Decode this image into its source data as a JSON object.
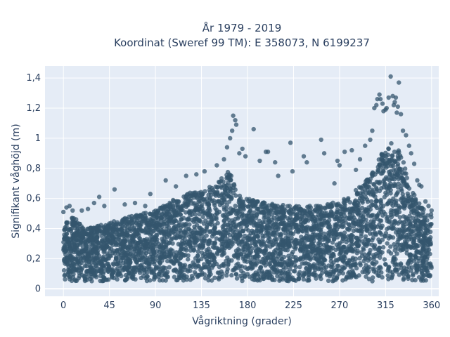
{
  "chart_data": {
    "type": "scatter",
    "title_line1": "År 1979 - 2019",
    "title_line2": "Koordinat (Sweref 99 TM): E 358073, N 6199237",
    "xlabel": "Vågriktning (grader)",
    "ylabel": "Signifikant våghöjd (m)",
    "xlim": [
      -18,
      367
    ],
    "ylim": [
      -0.05,
      1.48
    ],
    "grid": true,
    "x_ticks": [
      {
        "value": 0,
        "label": "0"
      },
      {
        "value": 45,
        "label": "45"
      },
      {
        "value": 90,
        "label": "90"
      },
      {
        "value": 135,
        "label": "135"
      },
      {
        "value": 180,
        "label": "180"
      },
      {
        "value": 225,
        "label": "225"
      },
      {
        "value": 270,
        "label": "270"
      },
      {
        "value": 315,
        "label": "315"
      },
      {
        "value": 360,
        "label": "360"
      }
    ],
    "y_ticks": [
      {
        "value": 0,
        "label": "0"
      },
      {
        "value": 0.2,
        "label": "0,2"
      },
      {
        "value": 0.4,
        "label": "0,4"
      },
      {
        "value": 0.6,
        "label": "0,6"
      },
      {
        "value": 0.8,
        "label": "0,8"
      },
      {
        "value": 1.0,
        "label": "1"
      },
      {
        "value": 1.2,
        "label": "1,2"
      },
      {
        "value": 1.4,
        "label": "1,4"
      }
    ],
    "series": [
      {
        "marker_color": "#34566d",
        "dense_envelope": {
          "x": [
            0,
            10,
            20,
            30,
            45,
            60,
            75,
            90,
            100,
            110,
            120,
            135,
            145,
            150,
            155,
            160,
            165,
            170,
            175,
            180,
            190,
            200,
            210,
            225,
            240,
            255,
            270,
            280,
            290,
            300,
            305,
            310,
            315,
            320,
            325,
            330,
            335,
            340,
            345,
            350,
            355,
            360
          ],
          "y_low": [
            0.05,
            0.05,
            0.05,
            0.05,
            0.05,
            0.05,
            0.05,
            0.05,
            0.05,
            0.05,
            0.05,
            0.05,
            0.05,
            0.05,
            0.05,
            0.05,
            0.05,
            0.05,
            0.05,
            0.05,
            0.05,
            0.05,
            0.05,
            0.05,
            0.05,
            0.05,
            0.05,
            0.05,
            0.05,
            0.05,
            0.05,
            0.05,
            0.05,
            0.05,
            0.05,
            0.05,
            0.05,
            0.05,
            0.05,
            0.05,
            0.05,
            0.05
          ],
          "y_high": [
            0.45,
            0.48,
            0.4,
            0.42,
            0.44,
            0.47,
            0.5,
            0.52,
            0.56,
            0.6,
            0.63,
            0.66,
            0.68,
            0.7,
            0.75,
            0.78,
            0.76,
            0.66,
            0.6,
            0.6,
            0.58,
            0.57,
            0.56,
            0.55,
            0.55,
            0.56,
            0.58,
            0.62,
            0.68,
            0.75,
            0.82,
            0.88,
            0.95,
            0.97,
            0.95,
            0.9,
            0.8,
            0.68,
            0.6,
            0.55,
            0.5,
            0.5
          ]
        },
        "points": [
          {
            "x": 0,
            "y": 0.51
          },
          {
            "x": 3,
            "y": 0.54
          },
          {
            "x": 6,
            "y": 0.55
          },
          {
            "x": 9,
            "y": 0.52
          },
          {
            "x": 18,
            "y": 0.52
          },
          {
            "x": 24,
            "y": 0.53
          },
          {
            "x": 30,
            "y": 0.57
          },
          {
            "x": 35,
            "y": 0.61
          },
          {
            "x": 40,
            "y": 0.55
          },
          {
            "x": 50,
            "y": 0.66
          },
          {
            "x": 60,
            "y": 0.56
          },
          {
            "x": 70,
            "y": 0.57
          },
          {
            "x": 80,
            "y": 0.55
          },
          {
            "x": 85,
            "y": 0.63
          },
          {
            "x": 100,
            "y": 0.72
          },
          {
            "x": 110,
            "y": 0.68
          },
          {
            "x": 120,
            "y": 0.75
          },
          {
            "x": 130,
            "y": 0.76
          },
          {
            "x": 138,
            "y": 0.78
          },
          {
            "x": 150,
            "y": 0.82
          },
          {
            "x": 157,
            "y": 0.86
          },
          {
            "x": 160,
            "y": 0.94
          },
          {
            "x": 163,
            "y": 1.0
          },
          {
            "x": 165,
            "y": 1.05
          },
          {
            "x": 166,
            "y": 1.15
          },
          {
            "x": 168,
            "y": 1.12
          },
          {
            "x": 169,
            "y": 1.09
          },
          {
            "x": 172,
            "y": 0.9
          },
          {
            "x": 175,
            "y": 0.93
          },
          {
            "x": 178,
            "y": 0.88
          },
          {
            "x": 186,
            "y": 1.06
          },
          {
            "x": 192,
            "y": 0.85
          },
          {
            "x": 198,
            "y": 0.91
          },
          {
            "x": 200,
            "y": 0.91
          },
          {
            "x": 207,
            "y": 0.84
          },
          {
            "x": 210,
            "y": 0.75
          },
          {
            "x": 222,
            "y": 0.97
          },
          {
            "x": 224,
            "y": 0.78
          },
          {
            "x": 235,
            "y": 0.88
          },
          {
            "x": 238,
            "y": 0.84
          },
          {
            "x": 252,
            "y": 0.99
          },
          {
            "x": 255,
            "y": 0.9
          },
          {
            "x": 265,
            "y": 0.7
          },
          {
            "x": 268,
            "y": 0.85
          },
          {
            "x": 270,
            "y": 0.82
          },
          {
            "x": 275,
            "y": 0.91
          },
          {
            "x": 282,
            "y": 0.92
          },
          {
            "x": 286,
            "y": 0.79
          },
          {
            "x": 290,
            "y": 0.86
          },
          {
            "x": 295,
            "y": 0.95
          },
          {
            "x": 300,
            "y": 0.99
          },
          {
            "x": 302,
            "y": 1.05
          },
          {
            "x": 304,
            "y": 1.2
          },
          {
            "x": 306,
            "y": 1.22
          },
          {
            "x": 307,
            "y": 1.26
          },
          {
            "x": 309,
            "y": 1.29
          },
          {
            "x": 310,
            "y": 1.26
          },
          {
            "x": 312,
            "y": 1.23
          },
          {
            "x": 313,
            "y": 1.18
          },
          {
            "x": 315,
            "y": 1.19
          },
          {
            "x": 316,
            "y": 1.2
          },
          {
            "x": 318,
            "y": 1.27
          },
          {
            "x": 320,
            "y": 1.41
          },
          {
            "x": 322,
            "y": 1.28
          },
          {
            "x": 323,
            "y": 1.22
          },
          {
            "x": 324,
            "y": 1.24
          },
          {
            "x": 325,
            "y": 1.27
          },
          {
            "x": 326,
            "y": 1.17
          },
          {
            "x": 327,
            "y": 1.21
          },
          {
            "x": 328,
            "y": 1.37
          },
          {
            "x": 330,
            "y": 1.16
          },
          {
            "x": 332,
            "y": 1.05
          },
          {
            "x": 335,
            "y": 1.02
          },
          {
            "x": 338,
            "y": 0.95
          },
          {
            "x": 340,
            "y": 0.9
          },
          {
            "x": 343,
            "y": 0.83
          },
          {
            "x": 346,
            "y": 0.72
          },
          {
            "x": 348,
            "y": 0.69
          },
          {
            "x": 350,
            "y": 0.68
          },
          {
            "x": 354,
            "y": 0.58
          },
          {
            "x": 357,
            "y": 0.55
          },
          {
            "x": 360,
            "y": 0.52
          }
        ]
      }
    ]
  }
}
